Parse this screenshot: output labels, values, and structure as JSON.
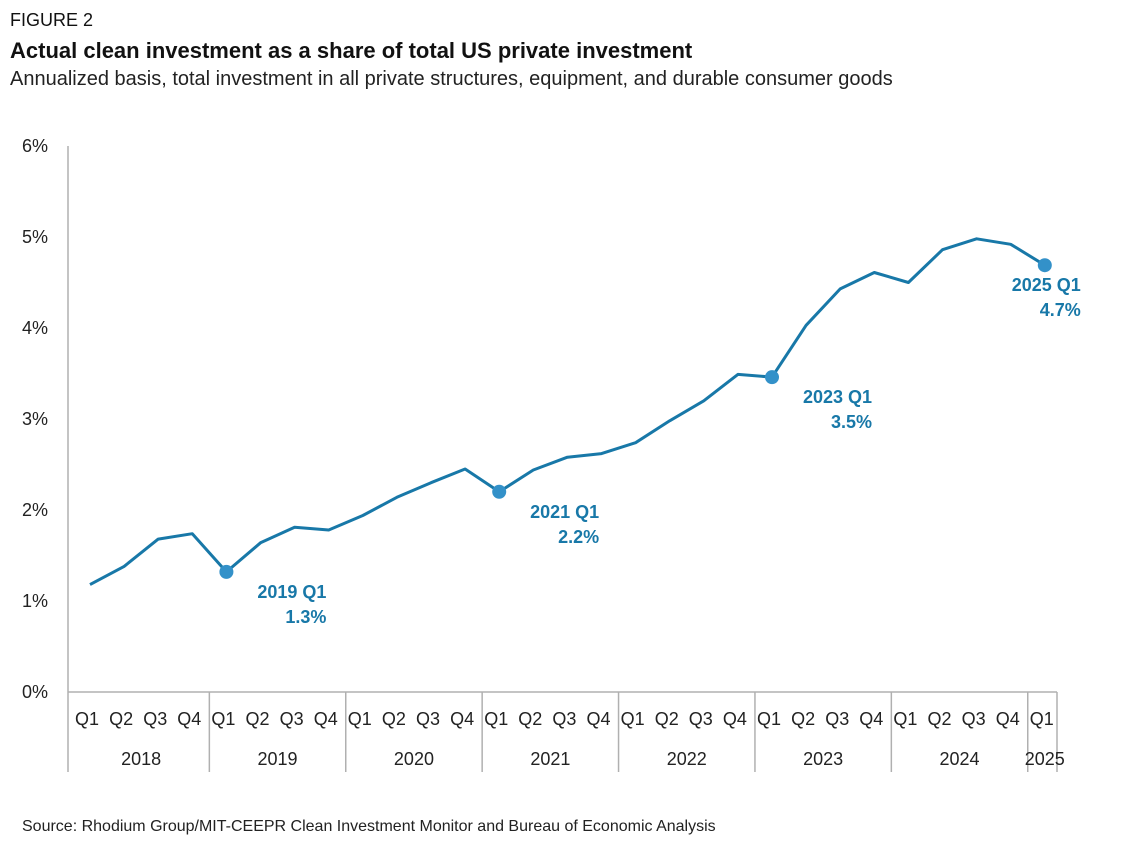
{
  "figure_label": "FIGURE 2",
  "title": "Actual clean investment as a share of total US private investment",
  "subtitle": "Annualized basis, total investment in all private structures, equipment, and durable consumer goods",
  "source": "Source: Rhodium Group/MIT-CEEPR Clean Investment Monitor and Bureau of Economic Analysis",
  "colors": {
    "line": "#1878a8",
    "marker": "#3391c9",
    "annotation": "#1878a8",
    "axis": "#b0b0b0"
  },
  "chart_data": {
    "type": "line",
    "title": "Actual clean investment as a share of total US private investment",
    "ylim": [
      0,
      6
    ],
    "y_ticks": [
      "0%",
      "1%",
      "2%",
      "3%",
      "4%",
      "5%",
      "6%"
    ],
    "grid": false,
    "legend": "none",
    "quarter_labels": [
      "Q1",
      "Q2",
      "Q3",
      "Q4",
      "Q1",
      "Q2",
      "Q3",
      "Q4",
      "Q1",
      "Q2",
      "Q3",
      "Q4",
      "Q1",
      "Q2",
      "Q3",
      "Q4",
      "Q1",
      "Q2",
      "Q3",
      "Q4",
      "Q1",
      "Q2",
      "Q3",
      "Q4",
      "Q1",
      "Q2",
      "Q3",
      "Q4",
      "Q1"
    ],
    "years": [
      {
        "label": "2018",
        "quarters": 4
      },
      {
        "label": "2019",
        "quarters": 4
      },
      {
        "label": "2020",
        "quarters": 4
      },
      {
        "label": "2021",
        "quarters": 4
      },
      {
        "label": "2022",
        "quarters": 4
      },
      {
        "label": "2023",
        "quarters": 4
      },
      {
        "label": "2024",
        "quarters": 4
      },
      {
        "label": "2025",
        "quarters": 1
      }
    ],
    "series": [
      {
        "values": [
          1.18,
          1.38,
          1.68,
          1.74,
          1.32,
          1.64,
          1.81,
          1.78,
          1.94,
          2.14,
          2.3,
          2.45,
          2.2,
          2.44,
          2.58,
          2.62,
          2.74,
          2.98,
          3.2,
          3.49,
          3.46,
          4.03,
          4.43,
          4.61,
          4.5,
          4.86,
          4.98,
          4.92,
          4.69
        ]
      }
    ],
    "annotations": [
      {
        "index": 4,
        "label": "2019 Q1",
        "value_text": "1.3%"
      },
      {
        "index": 12,
        "label": "2021 Q1",
        "value_text": "2.2%"
      },
      {
        "index": 20,
        "label": "2023 Q1",
        "value_text": "3.5%"
      },
      {
        "index": 28,
        "label": "2025 Q1",
        "value_text": "4.7%"
      }
    ]
  }
}
